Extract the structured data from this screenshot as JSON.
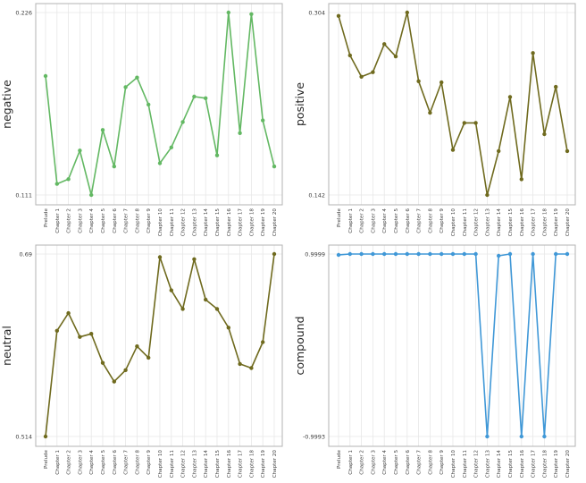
{
  "figure": {
    "background": "#ffffff",
    "grid_color": "#e7e7e7",
    "frame_color": "#b3b3b3",
    "tick_label_color": "#3c3c3c",
    "axis_label_color": "#262626"
  },
  "chart_data": {
    "type": "line",
    "layout": "2x2-grid",
    "legend": "none",
    "grid": true,
    "marker": "circle",
    "categories": [
      "Prelude",
      "Chapter 1",
      "Chapter 2",
      "Chapter 3",
      "Chapter 4",
      "Chapter 5",
      "Chapter 6",
      "Chapter 7",
      "Chapter 8",
      "Chapter 9",
      "Chapter 10",
      "Chapter 11",
      "Chapter 12",
      "Chapter 13",
      "Chapter 14",
      "Chapter 15",
      "Chapter 16",
      "Chapter 17",
      "Chapter 18",
      "Chapter 19",
      "Chapter 20"
    ],
    "charts": [
      {
        "ylabel": "negative",
        "position": "top-left",
        "color": "#63b863",
        "ymin": 0.111,
        "ymax": 0.226,
        "ytick_labels": [
          "0.226",
          "0.111"
        ],
        "values": [
          0.186,
          0.118,
          0.121,
          0.139,
          0.111,
          0.152,
          0.129,
          0.179,
          0.185,
          0.168,
          0.131,
          0.141,
          0.157,
          0.173,
          0.172,
          0.136,
          0.226,
          0.15,
          0.225,
          0.158,
          0.129
        ]
      },
      {
        "ylabel": "positive",
        "position": "top-right",
        "color": "#6f6a1e",
        "ymin": 0.142,
        "ymax": 0.304,
        "ytick_labels": [
          "0.304",
          "0.142"
        ],
        "values": [
          0.301,
          0.266,
          0.247,
          0.251,
          0.276,
          0.265,
          0.304,
          0.243,
          0.215,
          0.242,
          0.182,
          0.206,
          0.206,
          0.142,
          0.181,
          0.229,
          0.156,
          0.268,
          0.196,
          0.238,
          0.181
        ]
      },
      {
        "ylabel": "neutral",
        "position": "bottom-left",
        "color": "#6f6a1e",
        "ymin": 0.514,
        "ymax": 0.69,
        "ytick_labels": [
          "0.69",
          "0.514"
        ],
        "values": [
          0.514,
          0.616,
          0.633,
          0.61,
          0.613,
          0.585,
          0.567,
          0.578,
          0.601,
          0.59,
          0.687,
          0.655,
          0.637,
          0.685,
          0.646,
          0.637,
          0.619,
          0.584,
          0.58,
          0.605,
          0.69
        ]
      },
      {
        "ylabel": "compound",
        "position": "bottom-right",
        "color": "#4098d7",
        "ymin": -0.9993,
        "ymax": 0.9999,
        "ytick_labels": [
          "0.9999",
          "-0.9993"
        ],
        "values": [
          0.99,
          0.9999,
          0.9999,
          0.9999,
          0.9999,
          0.9999,
          0.9999,
          0.9999,
          0.9999,
          0.9999,
          0.9999,
          0.9999,
          0.9999,
          -0.9993,
          0.98,
          0.9999,
          -0.9993,
          0.9999,
          -0.9993,
          0.9999,
          0.9999
        ]
      }
    ]
  }
}
